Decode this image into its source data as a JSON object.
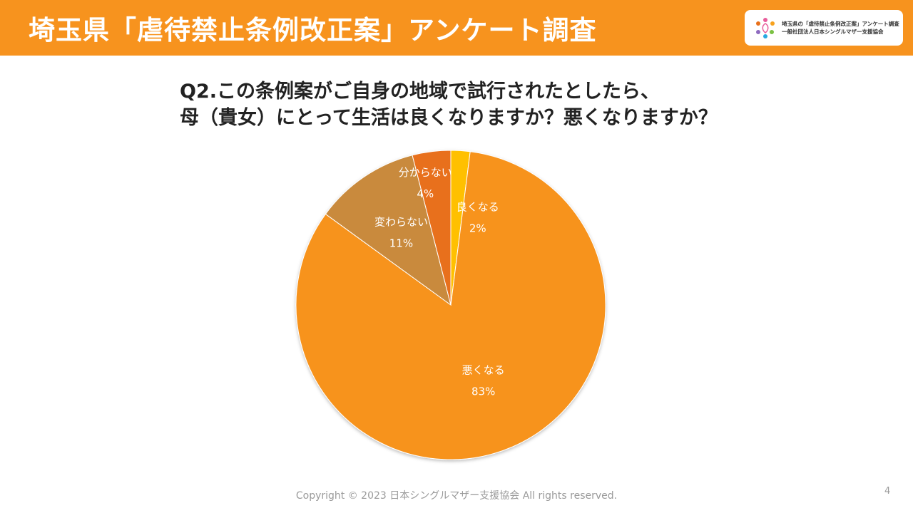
{
  "header": {
    "title": "埼玉県「虐待禁止条例改正案」アンケート調査",
    "logo_line1": "埼玉県の「虐待禁止条例改正案」アンケート調査",
    "logo_line2": "一般社団法人日本シングルマザー支援協会"
  },
  "question": {
    "line1": "Q2.この条例案がご自身の地域で試行されたとしたら、",
    "line2": "母（貴女）にとって生活は良くなりますか？悪くなりますか？"
  },
  "chart_data": {
    "type": "pie",
    "start_angle": "12 o'clock, clockwise",
    "slices": [
      {
        "label": "良くなる",
        "value": 2,
        "value_label": "2%",
        "color": "#ffc000"
      },
      {
        "label": "悪くなる",
        "value": 83,
        "value_label": "83%",
        "color": "#f7931e"
      },
      {
        "label": "変わらない",
        "value": 11,
        "value_label": "11%",
        "color": "#c98a3c"
      },
      {
        "label": "分からない",
        "value": 4,
        "value_label": "4%",
        "color": "#e8701a"
      }
    ]
  },
  "footer": {
    "copyright": "Copyright © 2023 日本シングルマザー支援協会 All rights reserved.",
    "page_number": "4"
  }
}
